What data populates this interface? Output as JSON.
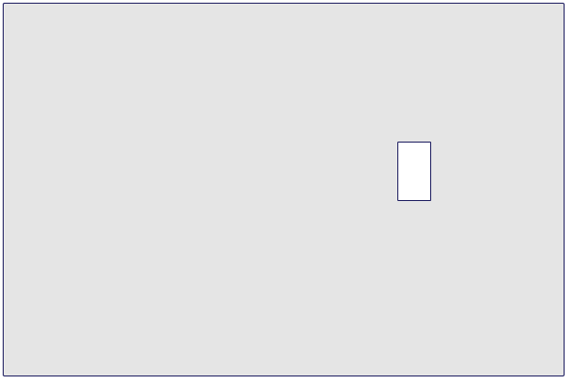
{
  "canvas": {
    "background_color": "#e5e5e5",
    "border_color": "#14145a"
  },
  "target": {
    "fill_color": "#ffffff",
    "border_color": "#14145a"
  }
}
